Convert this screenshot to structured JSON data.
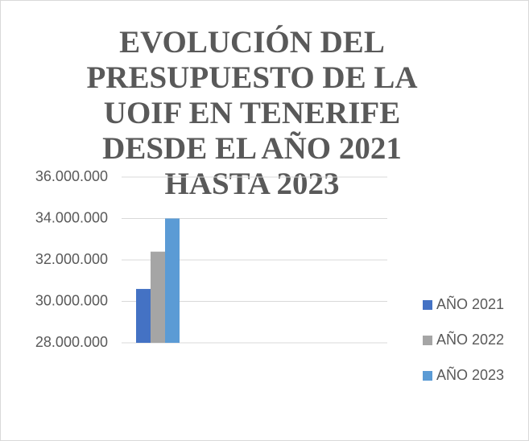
{
  "chart_data": {
    "type": "bar",
    "title": "EVOLUCIÓN DEL PRESUPUESTO DE LA UOIF EN TENERIFE DESDE EL AÑO 2021 HASTA 2023",
    "categories": [
      null
    ],
    "series": [
      {
        "name": "AÑO 2021",
        "color": "#4472c4",
        "values": [
          30600000
        ]
      },
      {
        "name": "AÑO 2022",
        "color": "#a5a5a5",
        "values": [
          32400000
        ]
      },
      {
        "name": "AÑO 2023",
        "color": "#5b9bd5",
        "values": [
          34000000
        ]
      }
    ],
    "ylim": [
      28000000,
      36000000
    ],
    "yticks": [
      {
        "value": 28000000,
        "label": "28.000.000"
      },
      {
        "value": 30000000,
        "label": "30.000.000"
      },
      {
        "value": 32000000,
        "label": "32.000.000"
      },
      {
        "value": 34000000,
        "label": "34.000.000"
      },
      {
        "value": 36000000,
        "label": "36.000.000"
      }
    ],
    "grid": true,
    "legend": "right"
  }
}
